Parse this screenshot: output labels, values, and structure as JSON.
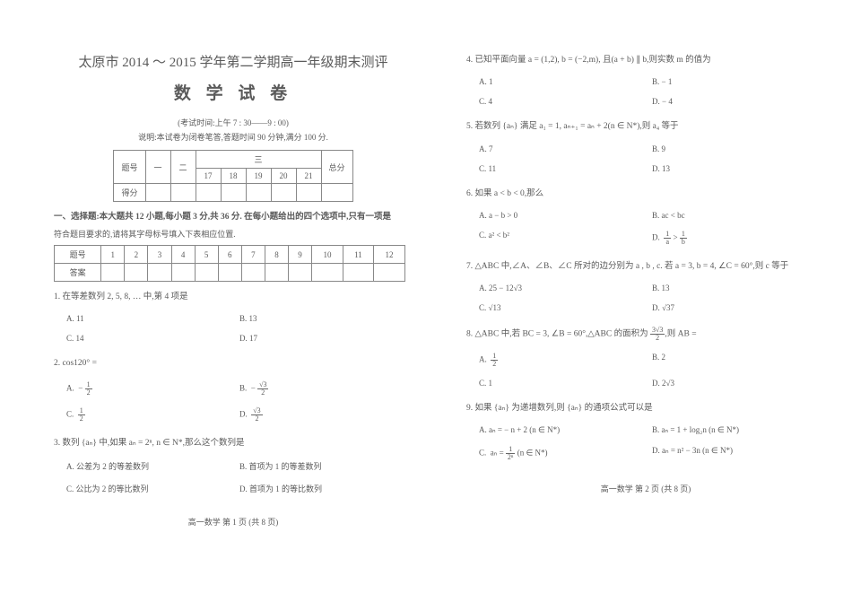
{
  "left": {
    "title_main": "太原市 2014 ～ 2015 学年第二学期高一年级期末测评",
    "title_sub": "数 学 试 卷",
    "exam_time": "(考试时间:上午 7 : 30——9 : 00)",
    "note": "说明:本试卷为闭卷笔答,答题时间 90 分钟,满分 100 分.",
    "score_rows": [
      "题号",
      "得分"
    ],
    "score_cols": [
      "一",
      "二",
      "17",
      "18",
      "19",
      "20",
      "21",
      "总分"
    ],
    "section1_hdr": "一、选择题:本大题共 12 小题,每小题 3 分,共 36 分. 在每小题给出的四个选项中,只有一项是",
    "section1_sub": "符合题目要求的,请将其字母标号填入下表相应位置.",
    "ans_hdr": "题号",
    "ans_row2": "答案",
    "q1": "1. 在等差数列 2, 5, 8, … 中,第 4 项是",
    "q1_opts": {
      "A": "A.  11",
      "B": "B.  13",
      "C": "C.  14",
      "D": "D.  17"
    },
    "q2": "2. cos120° =",
    "q2_opts": {
      "A": "A.  − ½",
      "B": "B.  − √3⁄2",
      "C": "C.  ½",
      "D": "D.  √3⁄2"
    },
    "q3": "3. 数列 {aₙ} 中,如果 aₙ = 2ⁿ, n ∈ N*,那么这个数列是",
    "q3_opts": {
      "A": "A.  公差为 2 的等差数列",
      "B": "B.  首项为 1 的等差数列",
      "C": "C.  公比为 2 的等比数列",
      "D": "D.  首项为 1 的等比数列"
    },
    "footer": "高一数学  第 1 页 (共 8 页)"
  },
  "right": {
    "q4": "4. 已知平面向量 a = (1,2), b = (−2,m), 且(a + b) ∥ b,则实数 m 的值为",
    "q4_opts": {
      "A": "A.  1",
      "B": "B.  − 1",
      "C": "C.  4",
      "D": "D.  − 4"
    },
    "q5": "5. 若数列 {aₙ} 满足 a₁ = 1, aₙ₊₁ = aₙ + 2(n ∈ N*),则 a₄ 等于",
    "q5_opts": {
      "A": "A.  7",
      "B": "B.  9",
      "C": "C.  11",
      "D": "D.  13"
    },
    "q6": "6. 如果 a < b < 0,那么",
    "q6_opts": {
      "A": "A.  a − b > 0",
      "B": "B.  ac < bc",
      "C": "C.  a² < b²",
      "D": "D.  1⁄a > 1⁄b"
    },
    "q7": "7. △ABC 中,∠A、∠B、∠C 所对的边分别为 a , b , c. 若 a = 3, b = 4, ∠C = 60°,则 c 等于",
    "q7_opts": {
      "A": "A.  25 − 12√3",
      "B": "B.  13",
      "C": "C.  √13",
      "D": "D.  √37"
    },
    "q8": "8. △ABC 中,若 BC = 3, ∠B = 60°,△ABC 的面积为 3√3⁄2,则 AB =",
    "q8_opts": {
      "A": "A.  ½",
      "B": "B.  2",
      "C": "C.  1",
      "D": "D.  2√3"
    },
    "q9": "9. 如果 {aₙ} 为递增数列,则 {aₙ} 的通项公式可以是",
    "q9_opts": {
      "A": "A.  aₙ = − n + 2 (n ∈ N*)",
      "B": "B.  aₙ = 1 + log₂n (n ∈ N*)",
      "C": "C.  aₙ = 1⁄2ⁿ (n ∈ N*)",
      "D": "D.  aₙ = n² − 3n (n ∈ N*)"
    },
    "footer": "高一数学  第 2 页 (共 8 页)"
  }
}
